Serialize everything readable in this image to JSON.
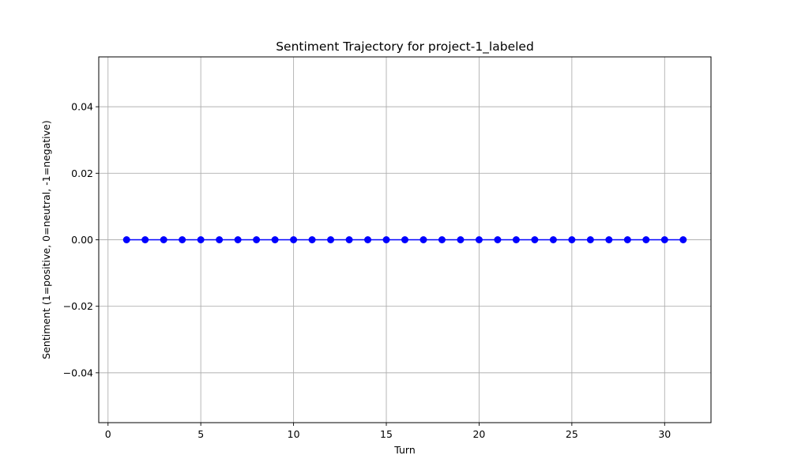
{
  "chart_data": {
    "type": "line",
    "title": "Sentiment Trajectory for project-1_labeled",
    "xlabel": "Turn",
    "ylabel": "Sentiment (1=positive, 0=neutral, -1=negative)",
    "xlim": [
      -0.5,
      32.5
    ],
    "ylim": [
      -0.055,
      0.055
    ],
    "x_ticks": [
      0,
      5,
      10,
      15,
      20,
      25,
      30
    ],
    "y_ticks": [
      -0.04,
      -0.02,
      0.0,
      0.02,
      0.04
    ],
    "y_tick_labels": [
      "−0.04",
      "−0.02",
      "0.00",
      "0.02",
      "0.04"
    ],
    "grid": true,
    "series": [
      {
        "color": "#0000ff",
        "marker": "circle",
        "x": [
          1,
          2,
          3,
          4,
          5,
          6,
          7,
          8,
          9,
          10,
          11,
          12,
          13,
          14,
          15,
          16,
          17,
          18,
          19,
          20,
          21,
          22,
          23,
          24,
          25,
          26,
          27,
          28,
          29,
          30,
          31
        ],
        "y": [
          0,
          0,
          0,
          0,
          0,
          0,
          0,
          0,
          0,
          0,
          0,
          0,
          0,
          0,
          0,
          0,
          0,
          0,
          0,
          0,
          0,
          0,
          0,
          0,
          0,
          0,
          0,
          0,
          0,
          0,
          0
        ]
      }
    ]
  }
}
